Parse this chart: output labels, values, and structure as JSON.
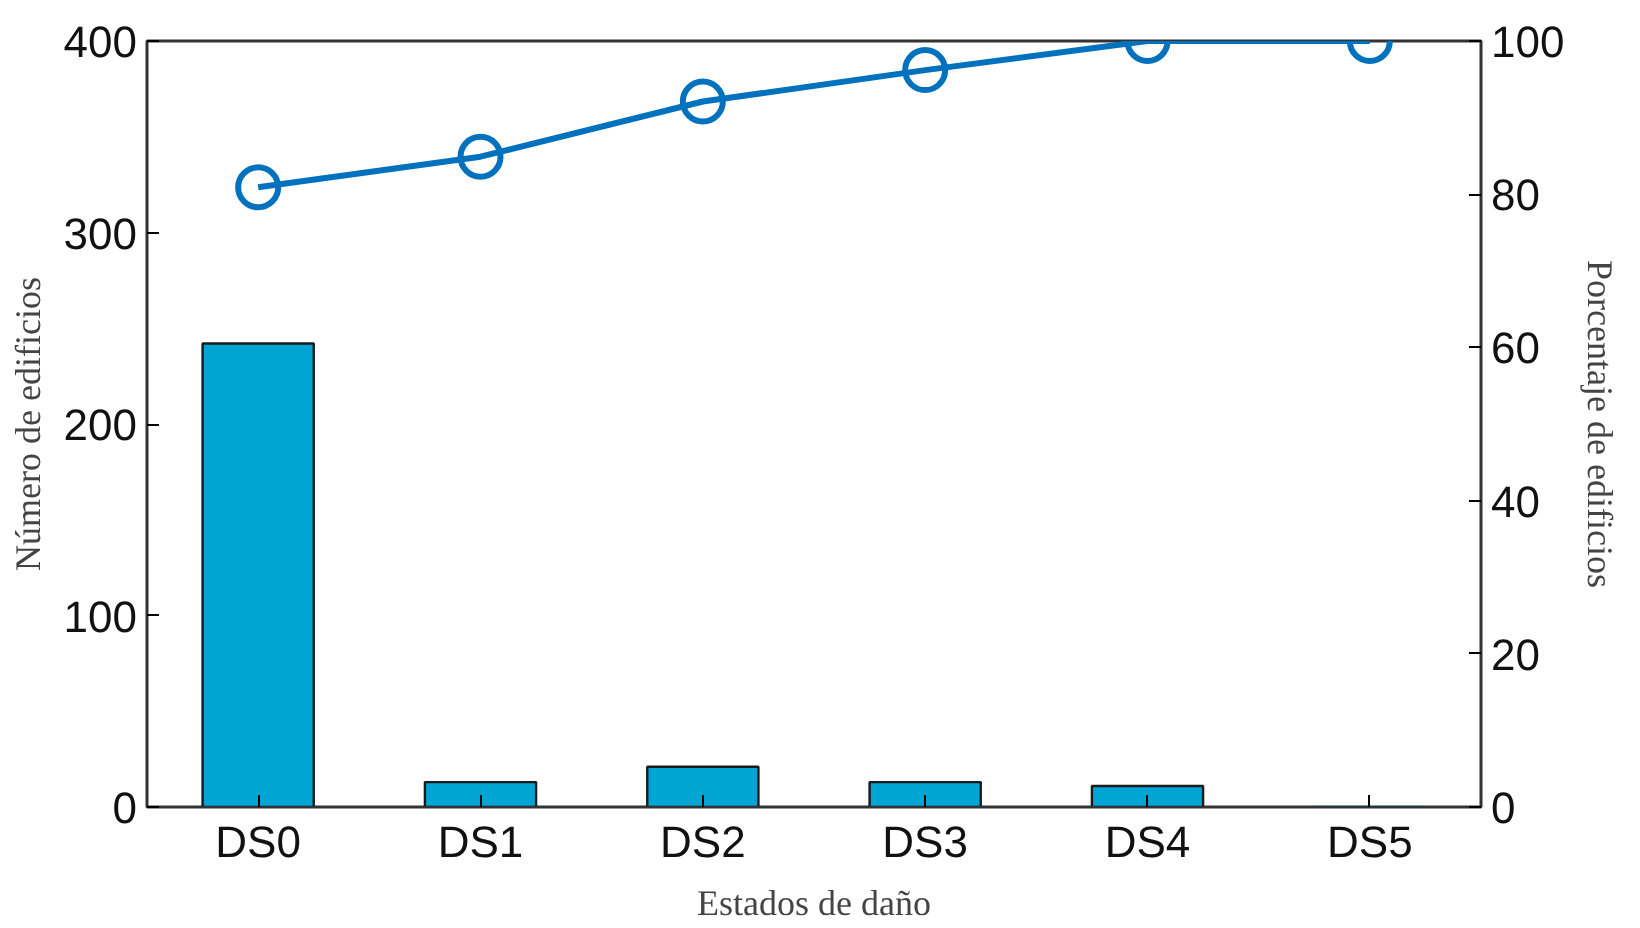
{
  "chart_data": {
    "type": "bar",
    "xlabel": "Estados de daño",
    "ylabel": "Número de edificios",
    "y2label": "Porcentaje de edificios",
    "categories": [
      "DS0",
      "DS1",
      "DS2",
      "DS3",
      "DS4",
      "DS5"
    ],
    "series": [
      {
        "color": "#00a5d4",
        "values": [
          242,
          13,
          21,
          13,
          11,
          0
        ]
      },
      {
        "type": "line",
        "axis": "y2",
        "color": "#0072bd",
        "marker": "circle",
        "line_style": "solid",
        "values": [
          80.9,
          84.9,
          92.1,
          96.2,
          100,
          100
        ]
      }
    ],
    "ylim": [
      0,
      400
    ],
    "yticks": [
      0,
      100,
      200,
      300,
      400
    ],
    "y2lim": [
      0,
      100
    ],
    "y2ticks": [
      0,
      20,
      40,
      60,
      80,
      100
    ],
    "grid": false
  }
}
